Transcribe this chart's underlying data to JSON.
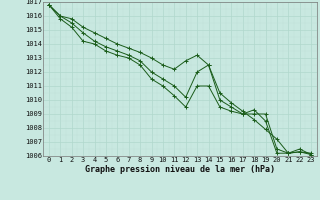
{
  "x": [
    0,
    1,
    2,
    3,
    4,
    5,
    6,
    7,
    8,
    9,
    10,
    11,
    12,
    13,
    14,
    15,
    16,
    17,
    18,
    19,
    20,
    21,
    22,
    23
  ],
  "line_max": [
    1016.8,
    1016.0,
    1015.8,
    1015.2,
    1014.8,
    1014.4,
    1014.0,
    1013.7,
    1013.4,
    1013.0,
    1012.5,
    1012.2,
    1012.8,
    1013.2,
    1012.5,
    1010.5,
    1009.8,
    1009.2,
    1008.6,
    1007.9,
    1007.2,
    1006.2,
    1006.3,
    1006.2
  ],
  "line_avg": [
    1016.8,
    1016.0,
    1015.5,
    1014.8,
    1014.2,
    1013.8,
    1013.5,
    1013.2,
    1012.8,
    1012.0,
    1011.5,
    1011.0,
    1010.2,
    1012.0,
    1012.5,
    1010.0,
    1009.5,
    1009.0,
    1009.0,
    1009.0,
    1006.5,
    1006.2,
    1006.3,
    1006.1
  ],
  "line_min": [
    1016.8,
    1015.8,
    1015.2,
    1014.2,
    1014.0,
    1013.5,
    1013.2,
    1013.0,
    1012.5,
    1011.5,
    1011.0,
    1010.3,
    1009.5,
    1011.0,
    1011.0,
    1009.5,
    1009.2,
    1009.0,
    1009.3,
    1008.5,
    1006.2,
    1006.2,
    1006.5,
    1006.1
  ],
  "bg_color": "#c8e8e0",
  "grid_color_major": "#b0d8cc",
  "grid_color_minor": "#c0e0d8",
  "line_color": "#1a5c1a",
  "xlabel": "Graphe pression niveau de la mer (hPa)",
  "ylim": [
    1006,
    1017
  ],
  "xlim": [
    -0.5,
    23.5
  ],
  "yticks": [
    1006,
    1007,
    1008,
    1009,
    1010,
    1011,
    1012,
    1013,
    1014,
    1015,
    1016,
    1017
  ],
  "xticks": [
    0,
    1,
    2,
    3,
    4,
    5,
    6,
    7,
    8,
    9,
    10,
    11,
    12,
    13,
    14,
    15,
    16,
    17,
    18,
    19,
    20,
    21,
    22,
    23
  ],
  "tick_fontsize": 5.0,
  "label_fontsize": 6.0
}
